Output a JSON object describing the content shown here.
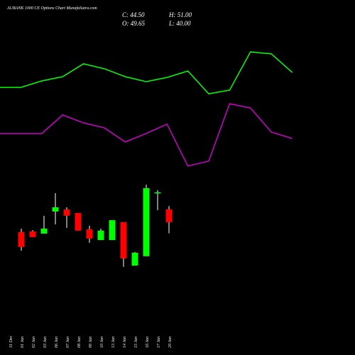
{
  "chart_data": {
    "type": "candlestick",
    "title": "AUBANK 1000  CE Options Chart MunafaSutra.com",
    "annotations": [
      "C: 44.50",
      "H: 51.00",
      "O: 49.65",
      "L: 40.00"
    ],
    "categories": [
      "31 Dec",
      "01 Jan",
      "02 Jan",
      "03 Jan",
      "06 Jan",
      "07 Jan",
      "08 Jan",
      "09 Jan",
      "10 Jan",
      "13 Jan",
      "14 Jan",
      "15 Jan",
      "16 Jan",
      "17 Jan",
      "20 Jan"
    ],
    "open": [
      null,
      40.5,
      40.8,
      39.9,
      48.8,
      49.6,
      48.2,
      41.6,
      37.3,
      37.3,
      44.5,
      27.0,
      30.8,
      56.2,
      49.65
    ],
    "high": [
      null,
      41.9,
      41.3,
      47.1,
      56.2,
      50.5,
      48.2,
      43.1,
      41.9,
      45.3,
      44.5,
      32.5,
      59.6,
      57.4,
      51.0
    ],
    "low": [
      null,
      33.0,
      38.5,
      39.9,
      43.6,
      42.2,
      41.1,
      36.2,
      37.3,
      37.3,
      26.5,
      27.0,
      30.8,
      49.3,
      40.0
    ],
    "close": [
      null,
      34.5,
      38.5,
      41.9,
      50.5,
      47.1,
      41.1,
      37.9,
      41.1,
      45.3,
      29.9,
      32.2,
      58.2,
      56.5,
      44.5
    ],
    "up_color": "#00ff00",
    "down_color": "#ff0000",
    "series": [
      {
        "name": null,
        "color": "#00ff00",
        "values": [
          98.8,
          98.8,
          101.4,
          103.1,
          108.3,
          106.3,
          103.1,
          101.1,
          102.8,
          105.4,
          96.2,
          97.7,
          113.1,
          112.3,
          104.8
        ]
      },
      {
        "name": null,
        "color": "#cc00cc",
        "values": [
          80.2,
          80.2,
          80.2,
          87.7,
          84.5,
          82.5,
          76.8,
          80.2,
          84.0,
          67.1,
          69.1,
          92.2,
          90.5,
          80.8,
          78.2
        ]
      }
    ],
    "ylim": [
      -9,
      134
    ]
  }
}
